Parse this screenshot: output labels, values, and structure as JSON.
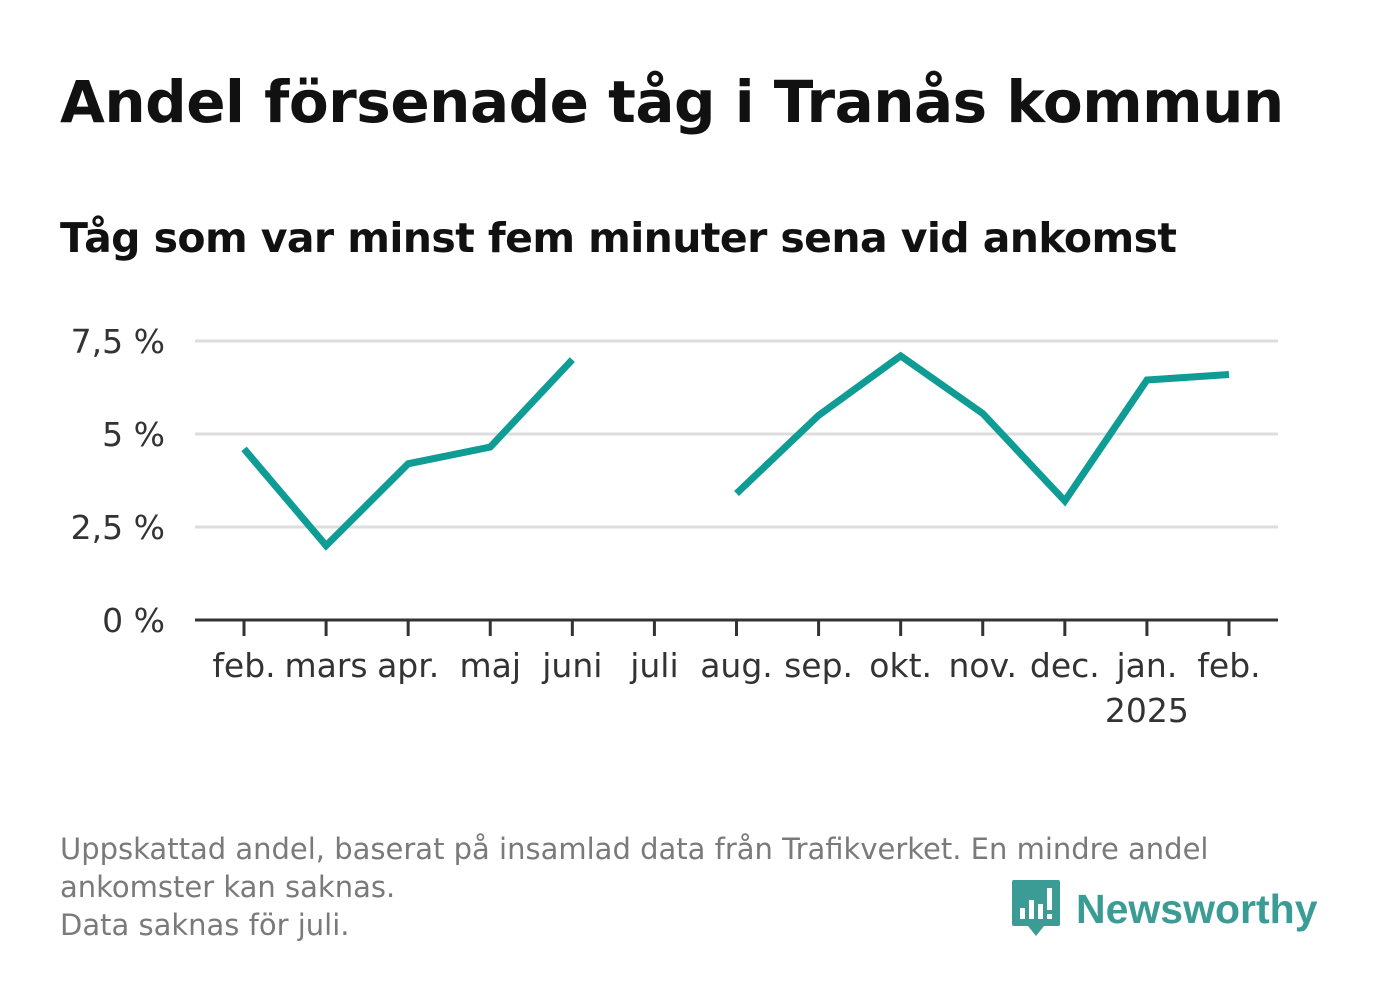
{
  "chart_data": {
    "type": "line",
    "title": "Andel försenade tåg i Tranås kommun",
    "subtitle": "Tåg som var minst fem minuter sena vid ankomst",
    "categories": [
      "feb.",
      "mars",
      "apr.",
      "maj",
      "juni",
      "juli",
      "aug.",
      "sep.",
      "okt.",
      "nov.",
      "dec.",
      "jan.",
      "feb."
    ],
    "category_sublabels": [
      "",
      "",
      "",
      "",
      "",
      "",
      "",
      "",
      "",
      "",
      "",
      "2025",
      ""
    ],
    "series": [
      {
        "values": [
          4.6,
          2.0,
          4.2,
          4.65,
          7.0,
          null,
          3.4,
          5.5,
          7.1,
          5.55,
          3.2,
          6.45,
          6.6
        ]
      }
    ],
    "ylim": [
      0,
      7.5
    ],
    "yticks": [
      0,
      2.5,
      5,
      7.5
    ],
    "ytick_labels": [
      "0 %",
      "2,5 %",
      "5 %",
      "7,5 %"
    ],
    "xlabel": "",
    "ylabel": "",
    "grid": true,
    "line_color": "#0f9c95"
  },
  "footnote": {
    "line1": "Uppskattad andel, baserat på insamlad data från Trafikverket. En mindre andel",
    "line2": "ankomster kan saknas.",
    "line3": "Data saknas för juli."
  },
  "brand": {
    "name": "Newsworthy",
    "icon": "newsworthy-logo-icon",
    "color": "#3b9c96"
  }
}
